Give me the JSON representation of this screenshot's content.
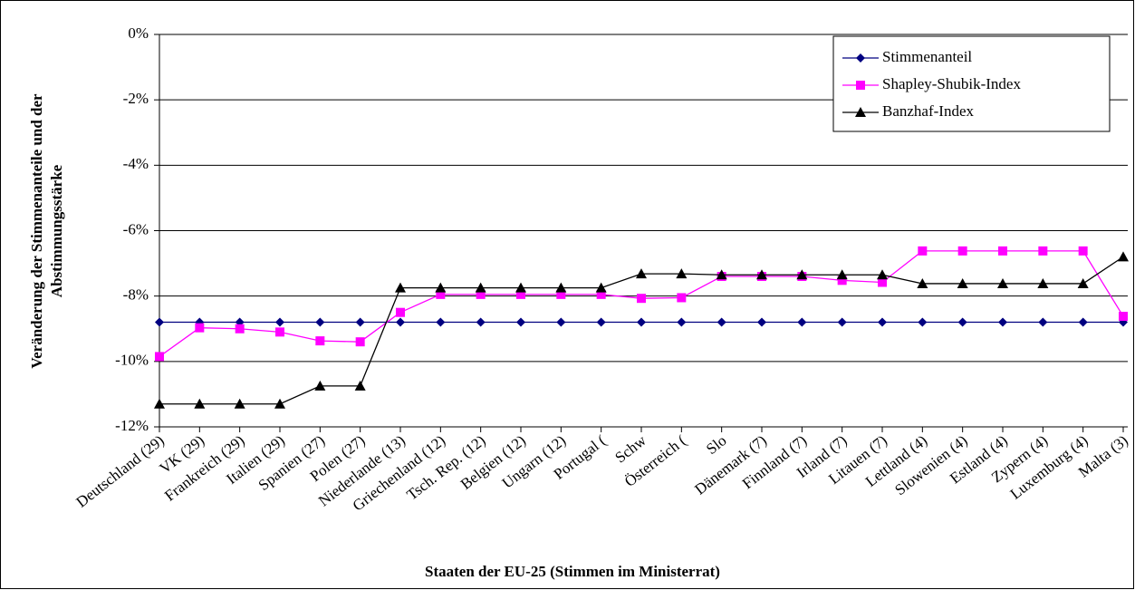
{
  "chart_data": {
    "type": "line",
    "y_label": [
      "Veränderung der Stimmenanteile und der",
      "Abstimmungsstärke"
    ],
    "x_label": "Staaten der EU-25 (Stimmen im Ministerrat)",
    "categories": [
      "Deutschland (29)",
      "VK (29)",
      "Frankreich (29)",
      "Italien (29)",
      "Spanien (27)",
      "Polen (27)",
      "Niederlande (13)",
      "Griechenland (12)",
      "Tsch. Rep. (12)",
      "Belgien (12)",
      "Ungarn (12)",
      "Portugal (",
      "Schw",
      "Österreich (",
      "Slo",
      "Dänemark (7)",
      "Finnland (7)",
      "Irland (7)",
      "Litauen  (7)",
      "Lettland (4)",
      "Slowenien (4)",
      "Estland (4)",
      "Zypern (4)",
      "Luxemburg (4)",
      "Malta (3)"
    ],
    "series": [
      {
        "name": "Stimmenanteil",
        "color": "#000080",
        "marker": "diamond",
        "values": [
          -8.8,
          -8.8,
          -8.8,
          -8.8,
          -8.8,
          -8.8,
          -8.8,
          -8.8,
          -8.8,
          -8.8,
          -8.8,
          -8.8,
          -8.8,
          -8.8,
          -8.8,
          -8.8,
          -8.8,
          -8.8,
          -8.8,
          -8.8,
          -8.8,
          -8.8,
          -8.8,
          -8.8,
          -8.8
        ]
      },
      {
        "name": "Shapley-Shubik-Index",
        "color": "#ff00ff",
        "marker": "square",
        "values": [
          -9.85,
          -8.97,
          -9.0,
          -9.1,
          -9.37,
          -9.4,
          -8.5,
          -7.95,
          -7.95,
          -7.95,
          -7.95,
          -7.95,
          -8.07,
          -8.05,
          -7.4,
          -7.4,
          -7.4,
          -7.52,
          -7.58,
          -6.62,
          -6.62,
          -6.62,
          -6.62,
          -6.62,
          -8.62
        ]
      },
      {
        "name": "Banzhaf-Index",
        "color": "#000000",
        "marker": "triangle",
        "values": [
          -11.3,
          -11.3,
          -11.3,
          -11.3,
          -10.75,
          -10.75,
          -7.75,
          -7.75,
          -7.75,
          -7.75,
          -7.75,
          -7.75,
          -7.32,
          -7.32,
          -7.35,
          -7.35,
          -7.35,
          -7.35,
          -7.35,
          -7.62,
          -7.62,
          -7.62,
          -7.62,
          -7.62,
          -6.8
        ]
      }
    ],
    "ylim": [
      -12,
      0
    ],
    "yticks": [
      {
        "value": 0,
        "label": "0%"
      },
      {
        "value": -2,
        "label": "-2%"
      },
      {
        "value": -4,
        "label": "-4%"
      },
      {
        "value": -6,
        "label": "-6%"
      },
      {
        "value": -8,
        "label": "-8%"
      },
      {
        "value": -10,
        "label": "-10%"
      },
      {
        "value": -12,
        "label": "-12%"
      }
    ],
    "grid": true,
    "legend": "upper right"
  }
}
